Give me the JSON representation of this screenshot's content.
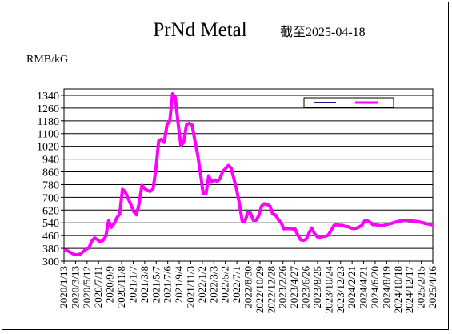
{
  "chart_data": {
    "type": "line",
    "title": "PrNd Metal",
    "subtitle": "截至2025-04-18",
    "ylabel": "RMB/kG",
    "xlabel": "",
    "ylim": [
      300,
      1380
    ],
    "y_ticks": [
      300,
      380,
      460,
      540,
      620,
      700,
      780,
      860,
      940,
      1020,
      1100,
      1180,
      1260,
      1340
    ],
    "x_ticks": [
      "2020/1/13",
      "2020/3/13",
      "2020/5/12",
      "2020/7/11",
      "2020/9/9",
      "2020/11/8",
      "2021/1/7",
      "2021/3/8",
      "2021/5/7",
      "2021/7/6",
      "2021/9/4",
      "2021/11/3",
      "2022/1/2",
      "2022/3/3",
      "2022/5/2",
      "2022/7/1",
      "2022/8/30",
      "2022/10/29",
      "2022/12/28",
      "2023/2/26",
      "2023/4/27",
      "2023/6/26",
      "2023/8/25",
      "2023/10/24",
      "2023/12/23",
      "2024/2/21",
      "2024/4/21",
      "2024/6/20",
      "2024/8/19",
      "2024/10/18",
      "2024/12/17",
      "2025/2/15",
      "2025/4/16"
    ],
    "grid": true,
    "legend": {
      "position": "top-right",
      "entries": [
        "",
        ""
      ]
    },
    "series": [
      {
        "name": "",
        "color": "#1a1a80",
        "x": [
          0,
          2,
          4,
          6,
          8,
          10,
          12,
          14,
          16,
          18,
          20,
          22,
          24,
          26,
          28,
          30,
          32,
          34,
          36,
          38,
          40,
          42,
          44,
          46,
          48,
          50,
          52,
          54,
          56,
          58,
          60,
          62,
          64,
          66,
          68,
          70,
          72,
          74,
          76,
          78,
          80,
          82,
          84,
          86,
          88,
          90,
          92,
          94,
          96,
          98,
          100,
          102,
          104,
          106,
          108,
          110,
          112,
          114,
          116,
          118,
          120,
          122,
          124,
          126,
          128,
          130,
          132,
          134,
          136,
          138,
          140,
          142,
          144,
          146,
          148,
          150,
          152,
          154,
          156,
          158,
          160,
          162,
          164,
          166,
          168,
          170,
          172,
          174,
          176,
          178,
          180,
          182,
          184,
          186,
          188,
          190,
          192,
          194,
          196,
          198,
          200,
          202,
          204,
          206,
          208,
          210,
          212,
          214,
          216,
          218,
          220,
          222,
          224,
          226,
          228,
          230,
          232,
          234,
          236,
          238,
          240,
          242,
          244,
          246,
          248,
          250,
          252,
          254,
          256,
          258,
          260,
          262,
          264,
          265
        ],
        "values": [
          365,
          365,
          355,
          345,
          338,
          338,
          343,
          360,
          372,
          382,
          420,
          442,
          432,
          418,
          428,
          452,
          548,
          508,
          530,
          568,
          590,
          745,
          730,
          692,
          652,
          610,
          588,
          655,
          770,
          752,
          740,
          736,
          748,
          870,
          1048,
          1060,
          1040,
          1150,
          1175,
          1348,
          1320,
          1160,
          1020,
          1040,
          1150,
          1160,
          1150,
          1055,
          965,
          848,
          718,
          718,
          830,
          790,
          805,
          795,
          810,
          858,
          875,
          895,
          880,
          815,
          745,
          658,
          548,
          545,
          598,
          598,
          552,
          552,
          580,
          640,
          655,
          650,
          640,
          590,
          585,
          555,
          535,
          498,
          500,
          500,
          498,
          498,
          458,
          430,
          425,
          432,
          472,
          505,
          470,
          448,
          445,
          450,
          452,
          460,
          490,
          520,
          525,
          520,
          520,
          515,
          512,
          505,
          500,
          502,
          510,
          520,
          548,
          548,
          540,
          525,
          525,
          520,
          518,
          520,
          526,
          530,
          535,
          540,
          544,
          548,
          552,
          552,
          550,
          548,
          546,
          544,
          540,
          535,
          530,
          528,
          525,
          525
        ]
      },
      {
        "name": "",
        "color": "#ff00ff",
        "x": [
          0,
          2,
          4,
          6,
          8,
          10,
          12,
          14,
          16,
          18,
          20,
          22,
          24,
          26,
          28,
          30,
          32,
          34,
          36,
          38,
          40,
          42,
          44,
          46,
          48,
          50,
          52,
          54,
          56,
          58,
          60,
          62,
          64,
          66,
          68,
          70,
          72,
          74,
          76,
          78,
          80,
          82,
          84,
          86,
          88,
          90,
          92,
          94,
          96,
          98,
          100,
          102,
          104,
          106,
          108,
          110,
          112,
          114,
          116,
          118,
          120,
          122,
          124,
          126,
          128,
          130,
          132,
          134,
          136,
          138,
          140,
          142,
          144,
          146,
          148,
          150,
          152,
          154,
          156,
          158,
          160,
          162,
          164,
          166,
          168,
          170,
          172,
          174,
          176,
          178,
          180,
          182,
          184,
          186,
          188,
          190,
          192,
          194,
          196,
          198,
          200,
          202,
          204,
          206,
          208,
          210,
          212,
          214,
          216,
          218,
          220,
          222,
          224,
          226,
          228,
          230,
          232,
          234,
          236,
          238,
          240,
          242,
          244,
          246,
          248,
          250,
          252,
          254,
          256,
          258,
          260,
          262,
          264,
          265
        ],
        "values": [
          368,
          368,
          358,
          348,
          340,
          340,
          346,
          362,
          375,
          385,
          425,
          445,
          435,
          420,
          430,
          455,
          552,
          512,
          535,
          572,
          595,
          750,
          735,
          695,
          655,
          612,
          590,
          660,
          775,
          755,
          742,
          738,
          752,
          875,
          1052,
          1065,
          1045,
          1155,
          1180,
          1350,
          1325,
          1165,
          1025,
          1045,
          1155,
          1165,
          1155,
          1060,
          970,
          852,
          722,
          722,
          835,
          795,
          810,
          800,
          815,
          862,
          880,
          900,
          885,
          820,
          750,
          662,
          552,
          550,
          602,
          602,
          556,
          556,
          585,
          645,
          660,
          655,
          645,
          595,
          590,
          560,
          540,
          502,
          505,
          505,
          502,
          502,
          462,
          434,
          430,
          436,
          476,
          508,
          474,
          452,
          450,
          454,
          456,
          464,
          494,
          524,
          528,
          524,
          524,
          518,
          516,
          508,
          504,
          506,
          514,
          524,
          552,
          552,
          544,
          528,
          528,
          524,
          522,
          524,
          530,
          534,
          538,
          544,
          548,
          552,
          556,
          556,
          554,
          552,
          550,
          548,
          544,
          540,
          535,
          532,
          528,
          528
        ]
      }
    ]
  }
}
